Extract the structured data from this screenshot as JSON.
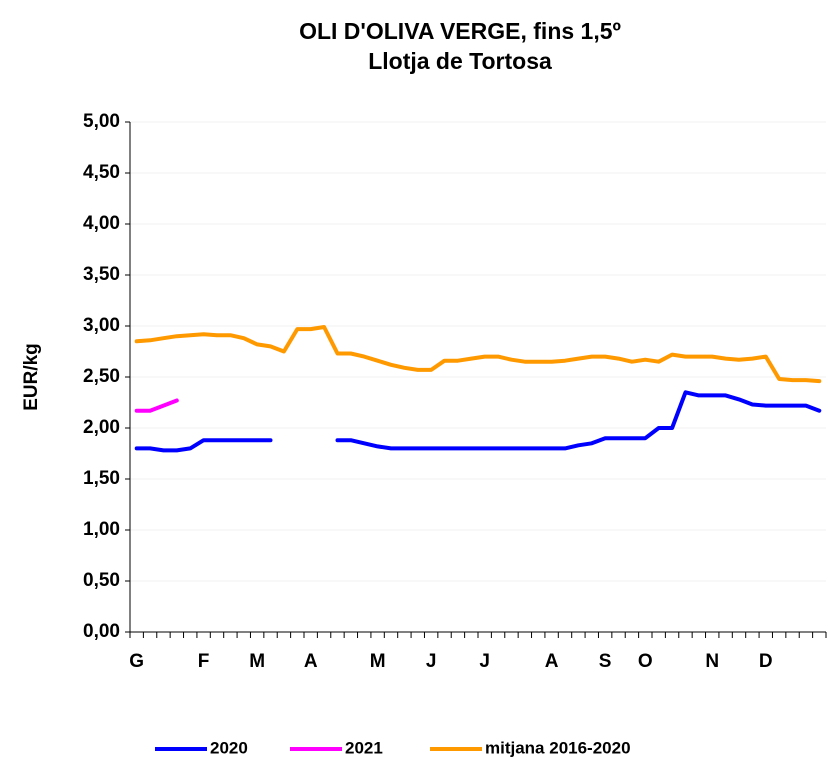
{
  "chart_data": {
    "type": "line",
    "title": "OLI D'OLIVA VERGE, fins 1,5º",
    "subtitle": "Llotja de Tortosa",
    "y_label": "EUR/kg",
    "categories": [
      "G",
      null,
      null,
      null,
      null,
      "F",
      null,
      null,
      null,
      "M",
      null,
      null,
      null,
      "A",
      null,
      null,
      null,
      null,
      "M",
      null,
      null,
      null,
      "J",
      null,
      null,
      null,
      "J",
      null,
      null,
      null,
      null,
      "A",
      null,
      null,
      null,
      "S",
      null,
      null,
      "O",
      null,
      null,
      null,
      null,
      "N",
      null,
      null,
      null,
      "D",
      null,
      null,
      null,
      null
    ],
    "series": [
      {
        "name": "2020",
        "color": "#0000ff",
        "values": [
          1.8,
          1.8,
          1.78,
          1.78,
          1.8,
          1.88,
          1.88,
          1.88,
          1.88,
          1.88,
          1.88,
          null,
          null,
          null,
          null,
          1.88,
          1.88,
          1.85,
          1.82,
          1.8,
          1.8,
          1.8,
          1.8,
          1.8,
          1.8,
          1.8,
          1.8,
          1.8,
          1.8,
          1.8,
          1.8,
          1.8,
          1.8,
          1.83,
          1.85,
          1.9,
          1.9,
          1.9,
          1.9,
          2.0,
          2.0,
          2.35,
          2.32,
          2.32,
          2.32,
          2.28,
          2.23,
          2.22,
          2.22,
          2.22,
          2.22,
          2.17
        ]
      },
      {
        "name": "2021",
        "color": "#ff00ff",
        "values": [
          2.17,
          2.17,
          2.22,
          2.27,
          null,
          null,
          null,
          null,
          null,
          null,
          null,
          null,
          null,
          null,
          null,
          null,
          null,
          null,
          null,
          null,
          null,
          null,
          null,
          null,
          null,
          null,
          null,
          null,
          null,
          null,
          null,
          null,
          null,
          null,
          null,
          null,
          null,
          null,
          null,
          null,
          null,
          null,
          null,
          null,
          null,
          null,
          null,
          null,
          null,
          null,
          null,
          null
        ]
      },
      {
        "name": "mitjana 2016-2020",
        "color": "#ff9900",
        "values": [
          2.85,
          2.86,
          2.88,
          2.9,
          2.91,
          2.92,
          2.91,
          2.91,
          2.88,
          2.82,
          2.8,
          2.75,
          2.97,
          2.97,
          2.99,
          2.73,
          2.73,
          2.7,
          2.66,
          2.62,
          2.59,
          2.57,
          2.57,
          2.66,
          2.66,
          2.68,
          2.7,
          2.7,
          2.67,
          2.65,
          2.65,
          2.65,
          2.66,
          2.68,
          2.7,
          2.7,
          2.68,
          2.65,
          2.67,
          2.65,
          2.72,
          2.7,
          2.7,
          2.7,
          2.68,
          2.67,
          2.68,
          2.7,
          2.48,
          2.47,
          2.47,
          2.46
        ]
      }
    ],
    "ylim": [
      0,
      5
    ],
    "yticks": [
      {
        "value": 0,
        "label": "0,00"
      },
      {
        "value": 0.5,
        "label": "0,50"
      },
      {
        "value": 1,
        "label": "1,00"
      },
      {
        "value": 1.5,
        "label": "1,50"
      },
      {
        "value": 2,
        "label": "2,00"
      },
      {
        "value": 2.5,
        "label": "2,50"
      },
      {
        "value": 3,
        "label": "3,00"
      },
      {
        "value": 3.5,
        "label": "3,50"
      },
      {
        "value": 4,
        "label": "4,00"
      },
      {
        "value": 4.5,
        "label": "4,50"
      },
      {
        "value": 5,
        "label": "5,00"
      }
    ],
    "grid": true,
    "legend": "bottom"
  }
}
